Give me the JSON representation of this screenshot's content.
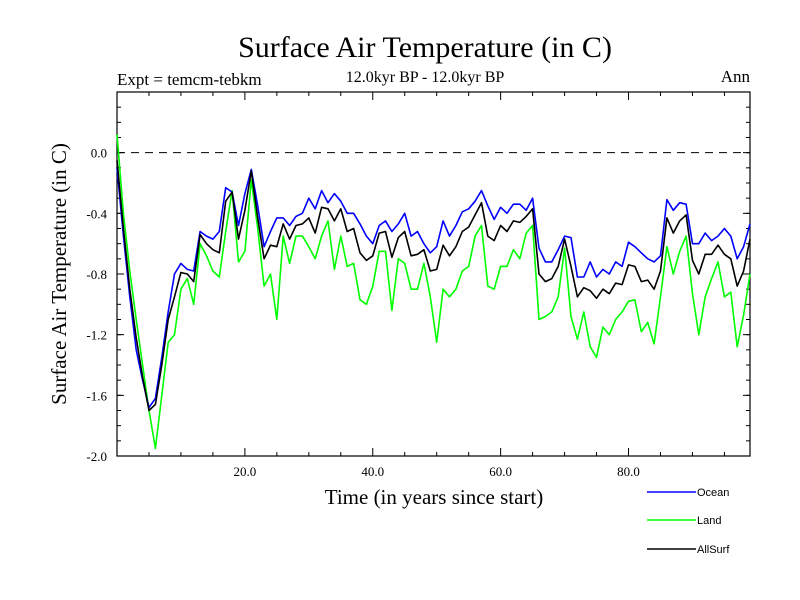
{
  "chart_data": {
    "type": "line",
    "title": "Surface Air Temperature (in C)",
    "subtitle": "12.0kyr BP - 12.0kyr BP",
    "left_label": "Expt = temcm-tebkm",
    "right_label": "Ann",
    "xlabel": "Time (in years since start)",
    "ylabel": "Surface Air Temperature (in C)",
    "xlim": [
      0,
      99
    ],
    "ylim": [
      -2.0,
      0.4
    ],
    "xticks": [
      20,
      40,
      60,
      80
    ],
    "xtick_labels": [
      "20.0",
      "40.0",
      "60.0",
      "80.0"
    ],
    "yticks": [
      0.0,
      -0.4,
      -0.8,
      -1.2,
      -1.6,
      -2.0
    ],
    "ytick_labels": [
      "0.0",
      "-0.4",
      "-0.8",
      "-1.2",
      "-1.6",
      "-2.0"
    ],
    "reference_line": 0.0,
    "legend_placement": "bottom-right",
    "series": [
      {
        "name": "Ocean",
        "color": "#0000ff",
        "values": [
          -0.1,
          -0.55,
          -0.95,
          -1.3,
          -1.5,
          -1.68,
          -1.62,
          -1.35,
          -1.05,
          -0.8,
          -0.73,
          -0.77,
          -0.78,
          -0.52,
          -0.55,
          -0.57,
          -0.52,
          -0.23,
          -0.26,
          -0.48,
          -0.27,
          -0.11,
          -0.35,
          -0.62,
          -0.52,
          -0.43,
          -0.43,
          -0.48,
          -0.42,
          -0.4,
          -0.3,
          -0.37,
          -0.25,
          -0.33,
          -0.27,
          -0.32,
          -0.4,
          -0.4,
          -0.47,
          -0.55,
          -0.6,
          -0.48,
          -0.45,
          -0.52,
          -0.47,
          -0.4,
          -0.55,
          -0.52,
          -0.6,
          -0.66,
          -0.62,
          -0.45,
          -0.55,
          -0.48,
          -0.39,
          -0.37,
          -0.32,
          -0.25,
          -0.35,
          -0.44,
          -0.36,
          -0.4,
          -0.34,
          -0.34,
          -0.38,
          -0.3,
          -0.63,
          -0.72,
          -0.72,
          -0.64,
          -0.55,
          -0.56,
          -0.82,
          -0.82,
          -0.72,
          -0.82,
          -0.77,
          -0.8,
          -0.72,
          -0.75,
          -0.59,
          -0.62,
          -0.66,
          -0.7,
          -0.72,
          -0.68,
          -0.31,
          -0.38,
          -0.33,
          -0.34,
          -0.6,
          -0.6,
          -0.53,
          -0.58,
          -0.55,
          -0.5,
          -0.55,
          -0.7,
          -0.62,
          -0.47
        ]
      },
      {
        "name": "Land",
        "color": "#00ff00",
        "values": [
          0.12,
          -0.4,
          -0.78,
          -1.1,
          -1.4,
          -1.7,
          -1.95,
          -1.6,
          -1.25,
          -1.2,
          -0.9,
          -0.83,
          -1.0,
          -0.6,
          -0.68,
          -0.78,
          -0.82,
          -0.52,
          -0.25,
          -0.72,
          -0.65,
          -0.18,
          -0.5,
          -0.88,
          -0.8,
          -1.1,
          -0.55,
          -0.73,
          -0.55,
          -0.55,
          -0.62,
          -0.7,
          -0.55,
          -0.45,
          -0.77,
          -0.55,
          -0.75,
          -0.73,
          -0.97,
          -1.0,
          -0.88,
          -0.65,
          -0.65,
          -1.04,
          -0.7,
          -0.73,
          -0.9,
          -0.9,
          -0.73,
          -0.95,
          -1.25,
          -0.9,
          -0.95,
          -0.9,
          -0.78,
          -0.75,
          -0.55,
          -0.48,
          -0.88,
          -0.9,
          -0.75,
          -0.75,
          -0.64,
          -0.7,
          -0.53,
          -0.48,
          -1.1,
          -1.08,
          -1.05,
          -0.95,
          -0.63,
          -1.08,
          -1.23,
          -1.05,
          -1.28,
          -1.35,
          -1.15,
          -1.2,
          -1.1,
          -1.05,
          -0.98,
          -0.97,
          -1.18,
          -1.12,
          -1.26,
          -0.95,
          -0.62,
          -0.8,
          -0.65,
          -0.55,
          -0.93,
          -1.2,
          -0.95,
          -0.83,
          -0.72,
          -0.95,
          -0.92,
          -1.28,
          -1.07,
          -0.8
        ]
      },
      {
        "name": "AllSurf",
        "color": "#000000",
        "values": [
          -0.05,
          -0.5,
          -0.9,
          -1.22,
          -1.48,
          -1.7,
          -1.66,
          -1.4,
          -1.1,
          -0.95,
          -0.79,
          -0.8,
          -0.85,
          -0.54,
          -0.6,
          -0.64,
          -0.66,
          -0.32,
          -0.26,
          -0.57,
          -0.38,
          -0.12,
          -0.43,
          -0.7,
          -0.61,
          -0.62,
          -0.47,
          -0.57,
          -0.48,
          -0.47,
          -0.43,
          -0.53,
          -0.36,
          -0.37,
          -0.45,
          -0.37,
          -0.52,
          -0.5,
          -0.66,
          -0.71,
          -0.68,
          -0.53,
          -0.52,
          -0.69,
          -0.56,
          -0.52,
          -0.68,
          -0.67,
          -0.64,
          -0.78,
          -0.77,
          -0.61,
          -0.68,
          -0.62,
          -0.52,
          -0.49,
          -0.41,
          -0.33,
          -0.55,
          -0.58,
          -0.48,
          -0.52,
          -0.45,
          -0.46,
          -0.42,
          -0.37,
          -0.8,
          -0.85,
          -0.83,
          -0.75,
          -0.57,
          -0.75,
          -0.95,
          -0.89,
          -0.91,
          -0.96,
          -0.9,
          -0.93,
          -0.86,
          -0.87,
          -0.74,
          -0.75,
          -0.85,
          -0.84,
          -0.9,
          -0.78,
          -0.43,
          -0.53,
          -0.45,
          -0.41,
          -0.71,
          -0.8,
          -0.67,
          -0.67,
          -0.61,
          -0.67,
          -0.7,
          -0.88,
          -0.78,
          -0.57
        ]
      }
    ]
  }
}
